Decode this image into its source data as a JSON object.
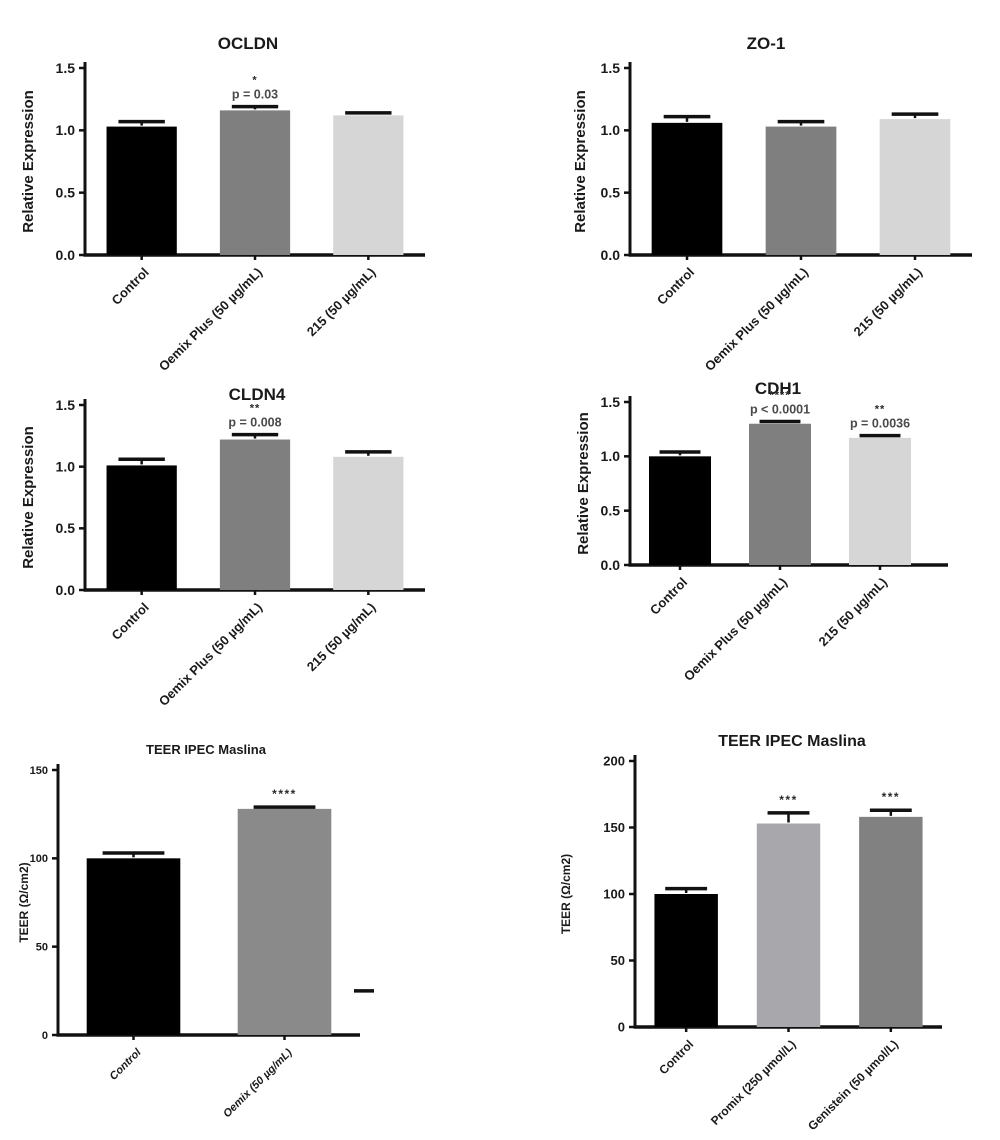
{
  "page": {
    "background": "#ffffff",
    "description_colors": {
      "bar_black": "#000000",
      "bar_mid_gray": "#7f7f7f",
      "bar_light_gray": "#d6d6d6",
      "bar_promix_gray": "#a8a8ac",
      "bar_genistein_gray": "#818181",
      "axis": "#111111"
    }
  },
  "chart_data": [
    {
      "id": "ocldn",
      "type": "bar",
      "title": "OCLDN",
      "ylabel": "Relative Expression",
      "xlabel": "",
      "ylim": [
        0,
        1.5
      ],
      "yticks": [
        0,
        0.5,
        1.0,
        1.5
      ],
      "ytick_labels": [
        "0.0",
        "0.5",
        "1.0",
        "1.5"
      ],
      "categories": [
        "Control",
        "Oemix Plus (50 µg/mL)",
        "215 (50 µg/mL)"
      ],
      "values": [
        1.03,
        1.16,
        1.12
      ],
      "errors": [
        0.04,
        0.03,
        0.02
      ],
      "bar_colors": [
        "#000000",
        "#7f7f7f",
        "#d6d6d6"
      ],
      "annotations": [
        null,
        {
          "stars": "*",
          "p": "p = 0.03"
        },
        null
      ],
      "grid": false,
      "legend": "none"
    },
    {
      "id": "zo1",
      "type": "bar",
      "title": "ZO-1",
      "ylabel": "Relative Expression",
      "xlabel": "",
      "ylim": [
        0,
        1.5
      ],
      "yticks": [
        0,
        0.5,
        1.0,
        1.5
      ],
      "ytick_labels": [
        "0.0",
        "0.5",
        "1.0",
        "1.5"
      ],
      "categories": [
        "Control",
        "Oemix Plus (50 µg/mL)",
        "215 (50 µg/mL)"
      ],
      "values": [
        1.06,
        1.03,
        1.09
      ],
      "errors": [
        0.05,
        0.04,
        0.04
      ],
      "bar_colors": [
        "#000000",
        "#7f7f7f",
        "#d6d6d6"
      ],
      "annotations": [
        null,
        null,
        null
      ],
      "grid": false,
      "legend": "none"
    },
    {
      "id": "cldn4",
      "type": "bar",
      "title": "CLDN4",
      "ylabel": "Relative Expression",
      "xlabel": "",
      "ylim": [
        0,
        1.5
      ],
      "yticks": [
        0,
        0.5,
        1.0,
        1.5
      ],
      "ytick_labels": [
        "0.0",
        "0.5",
        "1.0",
        "1.5"
      ],
      "categories": [
        "Control",
        "Oemix Plus (50 µg/mL)",
        "215 (50 µg/mL)"
      ],
      "values": [
        1.01,
        1.22,
        1.08
      ],
      "errors": [
        0.05,
        0.04,
        0.04
      ],
      "bar_colors": [
        "#000000",
        "#7f7f7f",
        "#d6d6d6"
      ],
      "annotations": [
        null,
        {
          "stars": "**",
          "p": "p = 0.008"
        },
        null
      ],
      "grid": false,
      "legend": "none"
    },
    {
      "id": "cdh1",
      "type": "bar",
      "title": "CDH1",
      "ylabel": "Relative Expression",
      "xlabel": "",
      "ylim": [
        0,
        1.5
      ],
      "yticks": [
        0,
        0.5,
        1.0,
        1.5
      ],
      "ytick_labels": [
        "0.0",
        "0.5",
        "1.0",
        "1.5"
      ],
      "categories": [
        "Control",
        "Oemix Plus (50 µg/mL)",
        "215 (50 µg/mL)"
      ],
      "values": [
        1.0,
        1.3,
        1.17
      ],
      "errors": [
        0.04,
        0.02,
        0.02
      ],
      "bar_colors": [
        "#000000",
        "#7f7f7f",
        "#d6d6d6"
      ],
      "annotations": [
        null,
        {
          "stars": "****",
          "p": "p < 0.0001"
        },
        {
          "stars": "**",
          "p": "p = 0.0036"
        }
      ],
      "grid": false,
      "legend": "none"
    },
    {
      "id": "teer-oemix",
      "type": "bar",
      "title": "TEER IPEC Maslina",
      "ylabel": "TEER (Ω/cm2)",
      "xlabel": "",
      "ylim": [
        0,
        150
      ],
      "yticks": [
        0,
        50,
        100,
        150
      ],
      "ytick_labels": [
        "0",
        "50",
        "100",
        "150"
      ],
      "categories": [
        "Control",
        "Oemix (50 µg/mL)"
      ],
      "values": [
        100,
        128
      ],
      "errors": [
        3,
        1
      ],
      "bar_colors": [
        "#000000",
        "#8a8a8a"
      ],
      "annotations": [
        null,
        {
          "stars": "****"
        }
      ],
      "stray_mark": {
        "value": 25
      },
      "grid": false,
      "legend": "none"
    },
    {
      "id": "teer-promix-genistein",
      "type": "bar",
      "title": "TEER IPEC Maslina",
      "ylabel": "TEER (Ω/cm2)",
      "xlabel": "",
      "ylim": [
        0,
        200
      ],
      "yticks": [
        0,
        50,
        100,
        150,
        200
      ],
      "ytick_labels": [
        "0",
        "50",
        "100",
        "150",
        "200"
      ],
      "categories": [
        "Control",
        "Promix (250 µmol/L)",
        "Genistein (50 µmol/L)"
      ],
      "values": [
        100,
        153,
        158
      ],
      "errors": [
        4,
        8,
        5
      ],
      "bar_colors": [
        "#000000",
        "#a8a8ac",
        "#818181"
      ],
      "annotations": [
        null,
        {
          "stars": "***"
        },
        {
          "stars": "***"
        }
      ],
      "grid": false,
      "legend": "none"
    }
  ]
}
